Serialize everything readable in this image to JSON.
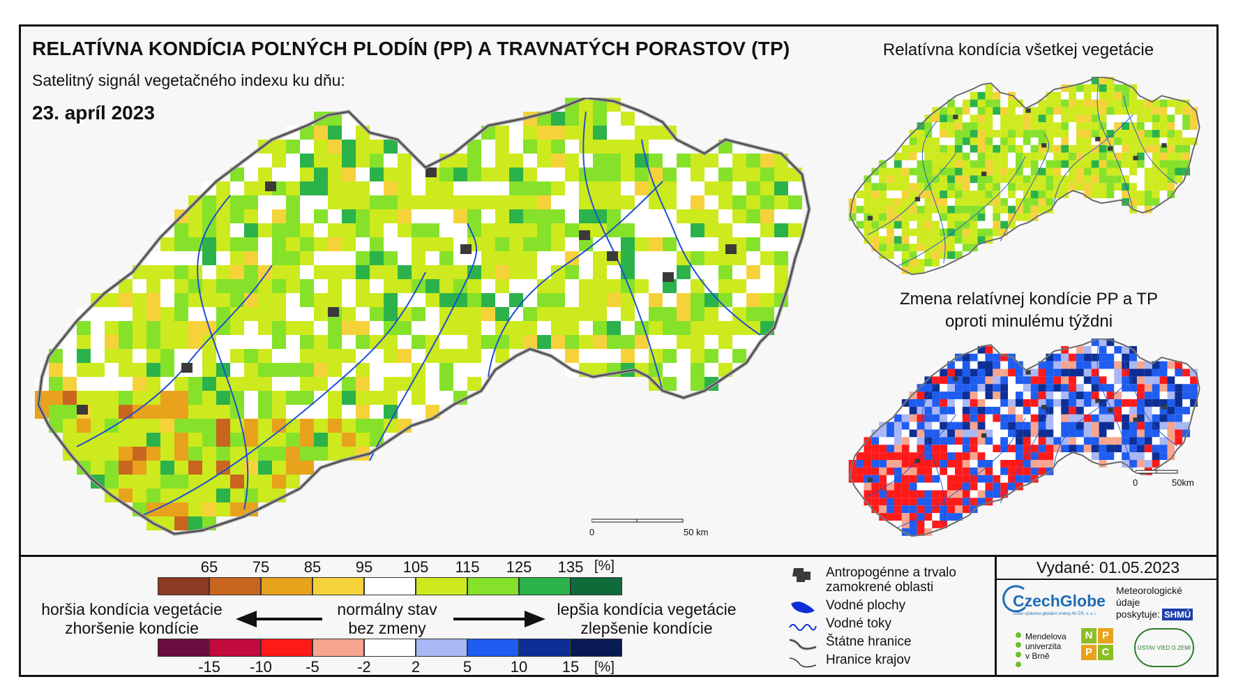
{
  "header": {
    "title": "RELATÍVNA KONDÍCIA POĽNÝCH PLODÍN (PP) A TRAVNATÝCH PORASTOV (TP)",
    "subtitle": "Satelitný signál vegetačného indexu ku dňu:",
    "date": "23. apríl 2023"
  },
  "insets": {
    "all_vegetation_title": "Relatívna kondícia všetkej vegetácie",
    "change_title_line1": "Zmena relatívnej kondície PP a TP",
    "change_title_line2": "oproti minulému týždni"
  },
  "scalebars": {
    "main": {
      "zero": "0",
      "end": "50 km"
    },
    "inset": {
      "zero": "0",
      "end": "50km"
    }
  },
  "condition_scale": {
    "ticks": [
      "65",
      "75",
      "85",
      "95",
      "105",
      "115",
      "125",
      "135"
    ],
    "unit": "[%]",
    "colors": [
      "#8c3a24",
      "#c8651f",
      "#e8a21b",
      "#f6d23a",
      "#ffffff",
      "#cdea1e",
      "#86e12a",
      "#2bb24a",
      "#0f6b3a"
    ]
  },
  "change_scale": {
    "ticks": [
      "-15",
      "-10",
      "-5",
      "-2",
      "2",
      "5",
      "10",
      "15"
    ],
    "unit": "[%]",
    "colors": [
      "#6b0d3e",
      "#c20a3c",
      "#ff1a1a",
      "#f7a58e",
      "#ffffff",
      "#a9b7f5",
      "#1f5cf0",
      "#0d2f95",
      "#0a1a55"
    ]
  },
  "legend_text": {
    "worse_line1": "horšia kondícia vegetácie",
    "worse_line2": "zhoršenie kondície",
    "normal_line1": "normálny stav",
    "normal_line2": "bez zmeny",
    "better_line1": "lepšia kondícia vegetácie",
    "better_line2": "zlepšenie kondície"
  },
  "map_legend": {
    "anthropogenic_line1": "Antropogénne a trvalo",
    "anthropogenic_line2": "zamokrené oblasti",
    "water_areas": "Vodné plochy",
    "water_streams": "Vodné toky",
    "state_borders": "Štátne hranice",
    "region_borders": "Hranice krajov"
  },
  "issued": "Vydané: 01.05.2023",
  "logos": {
    "czechglobe": "CzechGlobe",
    "czechglobe_sub": "Ústav výzkumu globální změny AV ČR, v. v. i.",
    "meteo_line1": "Meteorologické",
    "meteo_line2": "údaje",
    "meteo_line3": "poskytuje:",
    "shmu": "SHMÚ",
    "mendel_line1": "Mendelova",
    "mendel_line2": "univerzita",
    "mendel_line3": "v Brně",
    "nppc": [
      "N",
      "P",
      "P",
      "C"
    ],
    "uvz": "ÚSTAV VIED O ZEMI"
  },
  "colors": {
    "border": "#555555",
    "rivers": "#1f4fcf",
    "urban": "#3a3a3a",
    "water": "#0a2fd6"
  }
}
